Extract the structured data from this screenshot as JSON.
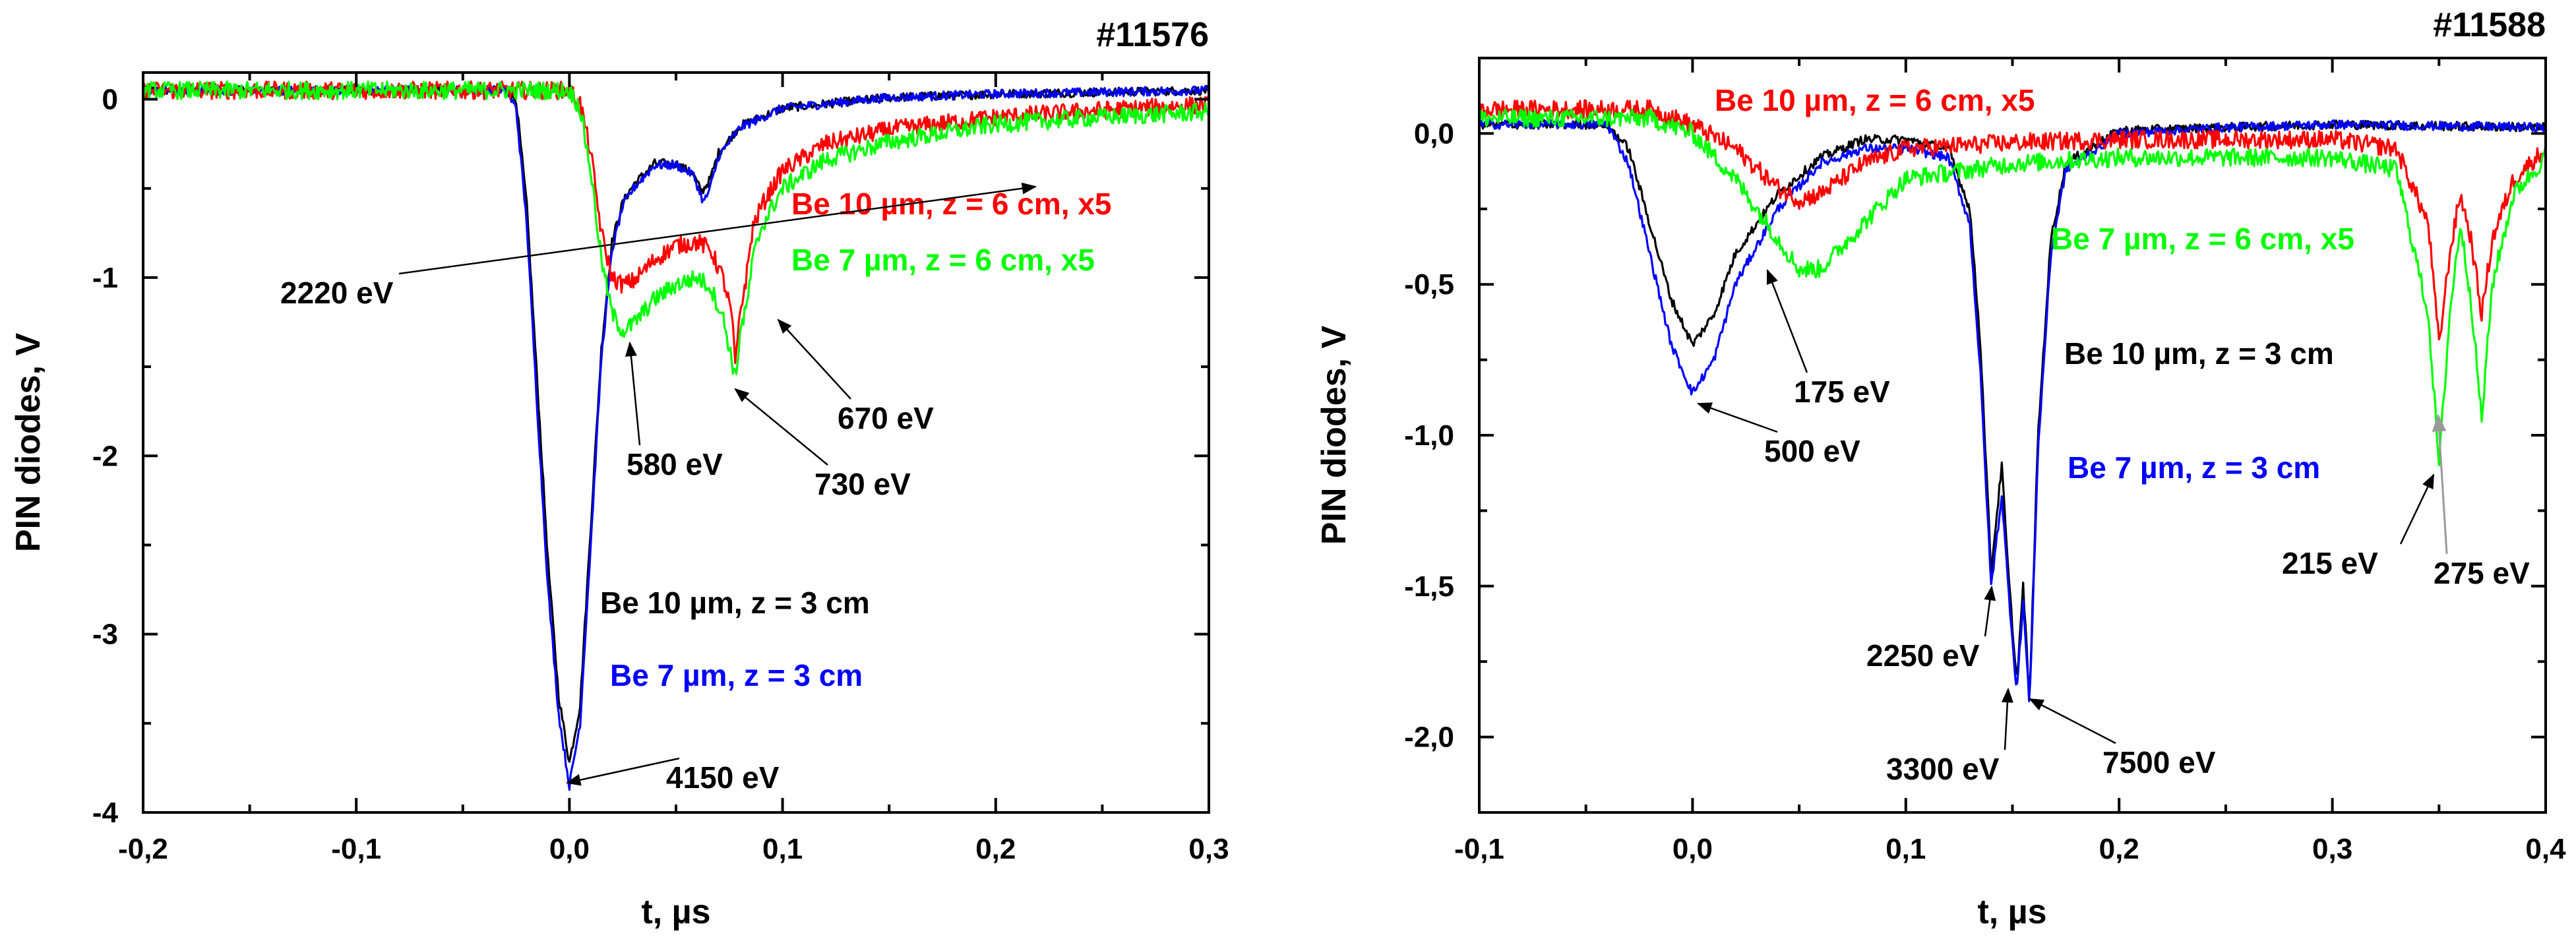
{
  "chart_data": [
    {
      "type": "line",
      "title": "#11576",
      "xlabel": "t, µs",
      "ylabel": "PIN diodes, V",
      "xlim": [
        -0.2,
        0.3
      ],
      "ylim": [
        -4,
        0.15
      ],
      "x_ticks": [
        -0.2,
        -0.1,
        0.0,
        0.1,
        0.2,
        0.3
      ],
      "x_tick_labels": [
        "-0,2",
        "-0,1",
        "0,0",
        "0,1",
        "0,2",
        "0,3"
      ],
      "y_ticks": [
        0,
        -1,
        -2,
        -3,
        -4
      ],
      "y_tick_labels": [
        "0",
        "-1",
        "-2",
        "-3",
        "-4"
      ],
      "grid": false,
      "series": [
        {
          "label": "Be 10 µm, z = 3 cm",
          "color": "#000000",
          "points": [
            [
              -0.2,
              0.05
            ],
            [
              -0.03,
              0.05
            ],
            [
              -0.025,
              0.0
            ],
            [
              -0.02,
              -0.6
            ],
            [
              -0.015,
              -1.6
            ],
            [
              -0.01,
              -2.6
            ],
            [
              -0.005,
              -3.35
            ],
            [
              0.0,
              -3.72
            ],
            [
              0.005,
              -3.4
            ],
            [
              0.01,
              -2.4
            ],
            [
              0.015,
              -1.4
            ],
            [
              0.02,
              -0.8
            ],
            [
              0.025,
              -0.58
            ],
            [
              0.03,
              -0.48
            ],
            [
              0.04,
              -0.36
            ],
            [
              0.05,
              -0.36
            ],
            [
              0.058,
              -0.42
            ],
            [
              0.062,
              -0.52
            ],
            [
              0.066,
              -0.45
            ],
            [
              0.07,
              -0.3
            ],
            [
              0.08,
              -0.15
            ],
            [
              0.1,
              -0.05
            ],
            [
              0.15,
              0.01
            ],
            [
              0.2,
              0.03
            ],
            [
              0.3,
              0.05
            ]
          ]
        },
        {
          "label": "Be 7 µm, z = 3 cm",
          "color": "#0000ff",
          "points": [
            [
              -0.2,
              0.05
            ],
            [
              -0.03,
              0.05
            ],
            [
              -0.025,
              -0.05
            ],
            [
              -0.02,
              -0.7
            ],
            [
              -0.015,
              -1.75
            ],
            [
              -0.01,
              -2.75
            ],
            [
              -0.005,
              -3.45
            ],
            [
              0.0,
              -3.85
            ],
            [
              0.005,
              -3.5
            ],
            [
              0.01,
              -2.5
            ],
            [
              0.015,
              -1.45
            ],
            [
              0.02,
              -0.85
            ],
            [
              0.025,
              -0.6
            ],
            [
              0.03,
              -0.5
            ],
            [
              0.04,
              -0.37
            ],
            [
              0.05,
              -0.37
            ],
            [
              0.058,
              -0.42
            ],
            [
              0.063,
              -0.58
            ],
            [
              0.066,
              -0.5
            ],
            [
              0.07,
              -0.32
            ],
            [
              0.08,
              -0.16
            ],
            [
              0.1,
              -0.05
            ],
            [
              0.15,
              0.01
            ],
            [
              0.2,
              0.03
            ],
            [
              0.3,
              0.05
            ]
          ]
        },
        {
          "label": "Be 10 µm, z = 6 cm, x5",
          "color": "#ff0000",
          "points": [
            [
              -0.2,
              0.05
            ],
            [
              0.0,
              0.05
            ],
            [
              0.005,
              -0.02
            ],
            [
              0.01,
              -0.3
            ],
            [
              0.015,
              -0.75
            ],
            [
              0.02,
              -1.0
            ],
            [
              0.025,
              -1.04
            ],
            [
              0.03,
              -1.02
            ],
            [
              0.04,
              -0.9
            ],
            [
              0.05,
              -0.82
            ],
            [
              0.06,
              -0.8
            ],
            [
              0.066,
              -0.84
            ],
            [
              0.072,
              -1.0
            ],
            [
              0.076,
              -1.2
            ],
            [
              0.078,
              -1.5
            ],
            [
              0.08,
              -1.2
            ],
            [
              0.083,
              -1.0
            ],
            [
              0.086,
              -0.72
            ],
            [
              0.09,
              -0.6
            ],
            [
              0.1,
              -0.4
            ],
            [
              0.12,
              -0.25
            ],
            [
              0.15,
              -0.17
            ],
            [
              0.2,
              -0.1
            ],
            [
              0.25,
              -0.06
            ],
            [
              0.3,
              -0.03
            ]
          ]
        },
        {
          "label": "Be 7 µm, z = 6 cm, x5",
          "color": "#00ff00",
          "points": [
            [
              -0.2,
              0.05
            ],
            [
              0.0,
              0.05
            ],
            [
              0.005,
              -0.05
            ],
            [
              0.01,
              -0.4
            ],
            [
              0.015,
              -0.9
            ],
            [
              0.02,
              -1.2
            ],
            [
              0.025,
              -1.3
            ],
            [
              0.03,
              -1.26
            ],
            [
              0.04,
              -1.12
            ],
            [
              0.05,
              -1.04
            ],
            [
              0.06,
              -1.0
            ],
            [
              0.066,
              -1.05
            ],
            [
              0.072,
              -1.22
            ],
            [
              0.076,
              -1.45
            ],
            [
              0.078,
              -1.58
            ],
            [
              0.08,
              -1.3
            ],
            [
              0.083,
              -1.18
            ],
            [
              0.086,
              -0.9
            ],
            [
              0.09,
              -0.72
            ],
            [
              0.1,
              -0.5
            ],
            [
              0.12,
              -0.34
            ],
            [
              0.15,
              -0.24
            ],
            [
              0.2,
              -0.14
            ],
            [
              0.25,
              -0.1
            ],
            [
              0.3,
              -0.07
            ]
          ]
        }
      ],
      "legend": [
        {
          "text": "Be 10 µm, z = 6 cm, x5",
          "color": "#ff0000"
        },
        {
          "text": "Be 7 µm, z = 6 cm, x5",
          "color": "#00ff00"
        },
        {
          "text": "Be 10 µm, z = 3 cm",
          "color": "#000000"
        },
        {
          "text": "Be 7 µm, z = 3 cm",
          "color": "#0000ff"
        }
      ],
      "annotations": [
        {
          "text": "2220 eV",
          "point": [
            0.066,
            -0.55
          ]
        },
        {
          "text": "580 eV",
          "point": [
            0.027,
            -1.3
          ]
        },
        {
          "text": "670 eV",
          "point": [
            0.083,
            -1.15
          ]
        },
        {
          "text": "730 eV",
          "point": [
            0.078,
            -1.58
          ]
        },
        {
          "text": "4150 eV",
          "point": [
            0.0,
            -3.82
          ]
        }
      ]
    },
    {
      "type": "line",
      "title": "#11588",
      "xlabel": "t, µs",
      "ylabel": "PIN diodes, V",
      "xlim": [
        -0.1,
        0.4
      ],
      "ylim": [
        -2.25,
        0.25
      ],
      "x_ticks": [
        -0.1,
        0.0,
        0.1,
        0.2,
        0.3,
        0.4
      ],
      "x_tick_labels": [
        "-0,1",
        "0,0",
        "0,1",
        "0,2",
        "0,3",
        "0,4"
      ],
      "y_ticks": [
        0.0,
        -0.5,
        -1.0,
        -1.5,
        -2.0
      ],
      "y_tick_labels": [
        "0,0",
        "-0,5",
        "-1,0",
        "-1,5",
        "-2,0"
      ],
      "grid": false,
      "series": [
        {
          "label": "Be 10 µm, z = 3 cm",
          "color": "#000000",
          "points": [
            [
              -0.1,
              0.03
            ],
            [
              -0.04,
              0.03
            ],
            [
              -0.03,
              -0.05
            ],
            [
              -0.02,
              -0.3
            ],
            [
              -0.01,
              -0.55
            ],
            [
              0.0,
              -0.7
            ],
            [
              0.01,
              -0.6
            ],
            [
              0.02,
              -0.4
            ],
            [
              0.04,
              -0.2
            ],
            [
              0.06,
              -0.08
            ],
            [
              0.08,
              -0.02
            ],
            [
              0.1,
              -0.02
            ],
            [
              0.12,
              -0.05
            ],
            [
              0.13,
              -0.25
            ],
            [
              0.135,
              -0.7
            ],
            [
              0.14,
              -1.45
            ],
            [
              0.145,
              -1.1
            ],
            [
              0.148,
              -1.45
            ],
            [
              0.152,
              -1.82
            ],
            [
              0.155,
              -1.5
            ],
            [
              0.158,
              -1.88
            ],
            [
              0.162,
              -1.0
            ],
            [
              0.168,
              -0.35
            ],
            [
              0.175,
              -0.1
            ],
            [
              0.2,
              0.01
            ],
            [
              0.25,
              0.02
            ],
            [
              0.3,
              0.03
            ],
            [
              0.4,
              0.02
            ]
          ]
        },
        {
          "label": "Be 7 µm, z = 3 cm",
          "color": "#0000ff",
          "points": [
            [
              -0.1,
              0.03
            ],
            [
              -0.04,
              0.03
            ],
            [
              -0.03,
              -0.1
            ],
            [
              -0.02,
              -0.4
            ],
            [
              -0.01,
              -0.7
            ],
            [
              0.0,
              -0.86
            ],
            [
              0.01,
              -0.75
            ],
            [
              0.02,
              -0.5
            ],
            [
              0.04,
              -0.25
            ],
            [
              0.06,
              -0.1
            ],
            [
              0.08,
              -0.05
            ],
            [
              0.1,
              -0.05
            ],
            [
              0.12,
              -0.08
            ],
            [
              0.13,
              -0.3
            ],
            [
              0.135,
              -0.8
            ],
            [
              0.14,
              -1.5
            ],
            [
              0.145,
              -1.2
            ],
            [
              0.148,
              -1.5
            ],
            [
              0.152,
              -1.85
            ],
            [
              0.155,
              -1.55
            ],
            [
              0.158,
              -1.9
            ],
            [
              0.162,
              -1.05
            ],
            [
              0.168,
              -0.4
            ],
            [
              0.175,
              -0.12
            ],
            [
              0.2,
              0.0
            ],
            [
              0.25,
              0.02
            ],
            [
              0.3,
              0.03
            ],
            [
              0.4,
              0.02
            ]
          ]
        },
        {
          "label": "Be 10 µm, z = 6 cm, x5",
          "color": "#ff0000",
          "points": [
            [
              -0.1,
              0.08
            ],
            [
              -0.02,
              0.08
            ],
            [
              0.0,
              0.03
            ],
            [
              0.02,
              -0.05
            ],
            [
              0.04,
              -0.18
            ],
            [
              0.05,
              -0.22
            ],
            [
              0.06,
              -0.2
            ],
            [
              0.08,
              -0.1
            ],
            [
              0.1,
              -0.05
            ],
            [
              0.15,
              -0.03
            ],
            [
              0.2,
              -0.02
            ],
            [
              0.25,
              -0.02
            ],
            [
              0.3,
              -0.02
            ],
            [
              0.33,
              -0.05
            ],
            [
              0.345,
              -0.3
            ],
            [
              0.35,
              -0.7
            ],
            [
              0.355,
              -0.4
            ],
            [
              0.36,
              -0.2
            ],
            [
              0.365,
              -0.35
            ],
            [
              0.37,
              -0.6
            ],
            [
              0.375,
              -0.35
            ],
            [
              0.385,
              -0.15
            ],
            [
              0.4,
              -0.05
            ]
          ]
        },
        {
          "label": "Be 7 µm, z = 6 cm, x5",
          "color": "#00ff00",
          "points": [
            [
              -0.1,
              0.05
            ],
            [
              -0.02,
              0.05
            ],
            [
              0.0,
              0.0
            ],
            [
              0.02,
              -0.15
            ],
            [
              0.04,
              -0.35
            ],
            [
              0.05,
              -0.45
            ],
            [
              0.06,
              -0.45
            ],
            [
              0.08,
              -0.3
            ],
            [
              0.1,
              -0.15
            ],
            [
              0.15,
              -0.1
            ],
            [
              0.2,
              -0.08
            ],
            [
              0.25,
              -0.08
            ],
            [
              0.3,
              -0.08
            ],
            [
              0.33,
              -0.12
            ],
            [
              0.345,
              -0.6
            ],
            [
              0.35,
              -1.1
            ],
            [
              0.355,
              -0.6
            ],
            [
              0.36,
              -0.3
            ],
            [
              0.365,
              -0.55
            ],
            [
              0.37,
              -0.95
            ],
            [
              0.375,
              -0.5
            ],
            [
              0.385,
              -0.2
            ],
            [
              0.4,
              -0.08
            ]
          ]
        }
      ],
      "legend": [
        {
          "text": "Be 10 µm, z = 6 cm, x5",
          "color": "#ff0000"
        },
        {
          "text": "Be 7 µm, z = 6 cm, x5",
          "color": "#00ff00"
        },
        {
          "text": "Be 10 µm, z = 3 cm",
          "color": "#000000"
        },
        {
          "text": "Be 7 µm, z = 3 cm",
          "color": "#0000ff"
        }
      ],
      "annotations": [
        {
          "text": "175 eV",
          "point": [
            0.055,
            -0.42
          ]
        },
        {
          "text": "500 eV",
          "point": [
            0.0,
            -0.86
          ]
        },
        {
          "text": "2250 eV",
          "point": [
            0.14,
            -1.45
          ]
        },
        {
          "text": "3300 eV",
          "point": [
            0.152,
            -1.82
          ]
        },
        {
          "text": "7500 eV",
          "point": [
            0.158,
            -1.88
          ]
        },
        {
          "text": "215 eV",
          "point": [
            0.35,
            -1.1
          ]
        },
        {
          "text": "275 eV",
          "point": [
            0.37,
            -0.92
          ]
        }
      ]
    }
  ]
}
